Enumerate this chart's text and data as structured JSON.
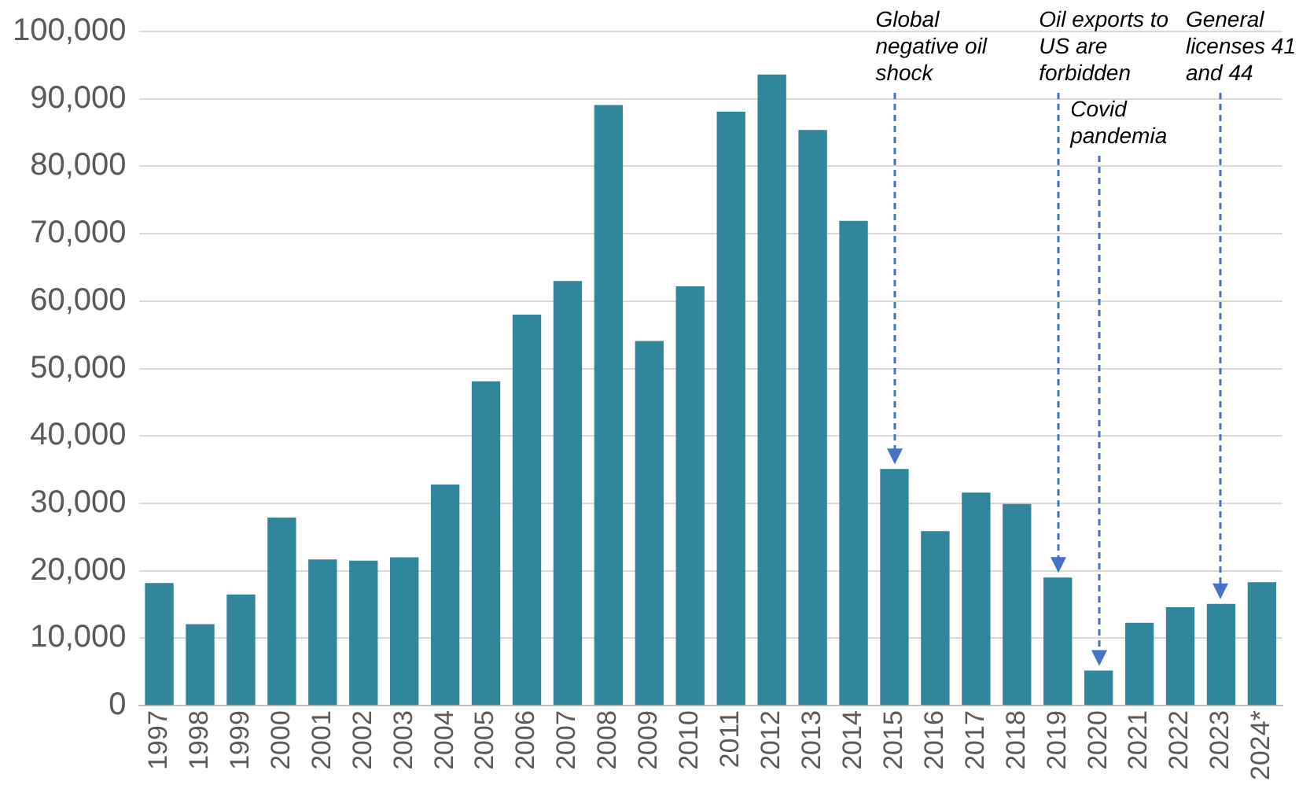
{
  "chart_data": {
    "type": "bar",
    "categories": [
      "1997",
      "1998",
      "1999",
      "2000",
      "2001",
      "2002",
      "2003",
      "2004",
      "2005",
      "2006",
      "2007",
      "2008",
      "2009",
      "2010",
      "2011",
      "2012",
      "2013",
      "2014",
      "2015",
      "2016",
      "2017",
      "2018",
      "2019",
      "2020",
      "2021",
      "2022",
      "2023",
      "2024*"
    ],
    "values": [
      18200,
      12100,
      16500,
      27900,
      21700,
      21500,
      22000,
      32800,
      48100,
      58000,
      63000,
      89100,
      54100,
      62200,
      88100,
      93600,
      85400,
      71900,
      35100,
      25900,
      31600,
      29900,
      19000,
      5200,
      12300,
      14600,
      15100,
      18300
    ],
    "color": "#31869b",
    "ylim": [
      0,
      100000
    ],
    "yticks": [
      0,
      {
        "value": 10000,
        "label": "10,000"
      },
      {
        "value": 20000,
        "label": "20,000"
      },
      {
        "value": 30000,
        "label": "30,000"
      },
      {
        "value": 40000,
        "label": "40,000"
      },
      {
        "value": 50000,
        "label": "50,000"
      },
      {
        "value": 60000,
        "label": "60,000"
      },
      {
        "value": 70000,
        "label": "70,000"
      },
      {
        "value": 80000,
        "label": "80,000"
      },
      {
        "value": 90000,
        "label": "90,000"
      },
      {
        "value": 100000,
        "label": "100,000"
      }
    ],
    "grid": "y",
    "legend": false,
    "ref_lines": [
      {
        "axis": "x",
        "value": "2015",
        "label": "Global negative oil shock",
        "color": "#4472c4",
        "line_style": "dashed"
      },
      {
        "axis": "x",
        "value": "2019",
        "label": "Oil exports to US are forbidden",
        "color": "#4472c4",
        "line_style": "dashed"
      },
      {
        "axis": "x",
        "value": "2020",
        "label": "Covid pandemia",
        "color": "#4472c4",
        "line_style": "dashed"
      },
      {
        "axis": "x",
        "value": "2023",
        "label": "General licenses 41 and 44",
        "color": "#4472c4",
        "line_style": "dashed"
      }
    ]
  }
}
